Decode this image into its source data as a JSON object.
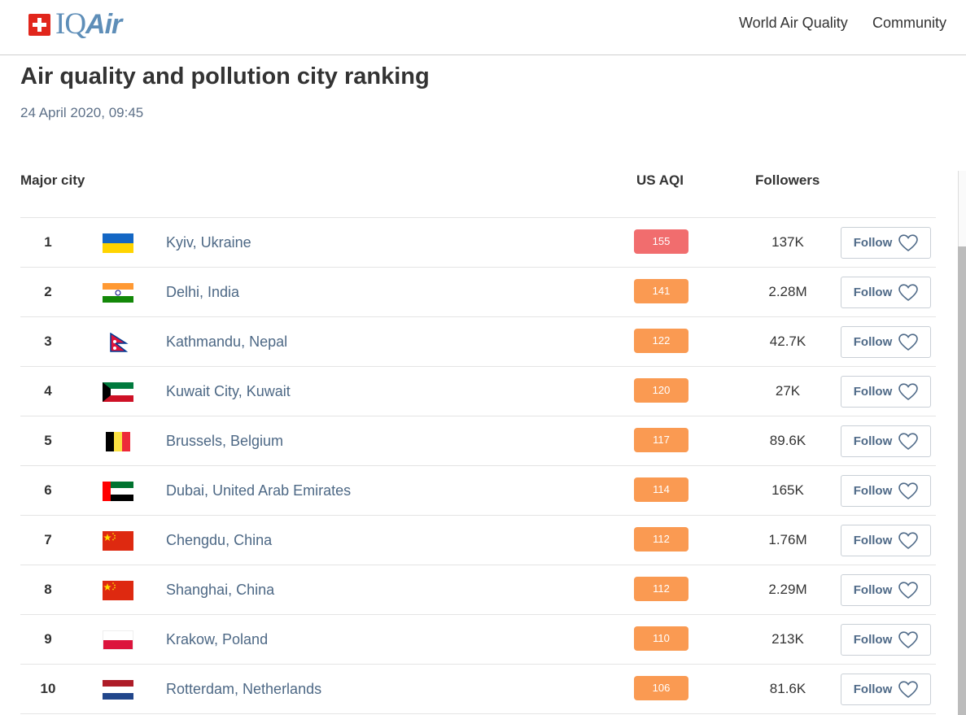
{
  "header": {
    "logo": {
      "iq": "IQ",
      "air": "Air",
      "icon": "swiss-cross-icon"
    },
    "nav": [
      "World Air Quality",
      "Community"
    ]
  },
  "page": {
    "title": "Air quality and pollution city ranking",
    "date": "24 April 2020, 09:45"
  },
  "table": {
    "columns": {
      "city": "Major city",
      "aqi": "US AQI",
      "followers": "Followers"
    },
    "follow_label": "Follow",
    "rows": [
      {
        "rank": "1",
        "flag": "ukraine-flag",
        "city": "Kyiv, Ukraine",
        "aqi": "155",
        "aqi_color": "#f16d6e",
        "followers": "137K"
      },
      {
        "rank": "2",
        "flag": "india-flag",
        "city": "Delhi, India",
        "aqi": "141",
        "aqi_color": "#fa9a52",
        "followers": "2.28M"
      },
      {
        "rank": "3",
        "flag": "nepal-flag",
        "city": "Kathmandu, Nepal",
        "aqi": "122",
        "aqi_color": "#fa9a52",
        "followers": "42.7K"
      },
      {
        "rank": "4",
        "flag": "kuwait-flag",
        "city": "Kuwait City, Kuwait",
        "aqi": "120",
        "aqi_color": "#fa9a52",
        "followers": "27K"
      },
      {
        "rank": "5",
        "flag": "belgium-flag",
        "city": "Brussels, Belgium",
        "aqi": "117",
        "aqi_color": "#fa9a52",
        "followers": "89.6K"
      },
      {
        "rank": "6",
        "flag": "uae-flag",
        "city": "Dubai, United Arab Emirates",
        "aqi": "114",
        "aqi_color": "#fa9a52",
        "followers": "165K"
      },
      {
        "rank": "7",
        "flag": "china-flag",
        "city": "Chengdu, China",
        "aqi": "112",
        "aqi_color": "#fa9a52",
        "followers": "1.76M"
      },
      {
        "rank": "8",
        "flag": "china-flag",
        "city": "Shanghai, China",
        "aqi": "112",
        "aqi_color": "#fa9a52",
        "followers": "2.29M"
      },
      {
        "rank": "9",
        "flag": "poland-flag",
        "city": "Krakow, Poland",
        "aqi": "110",
        "aqi_color": "#fa9a52",
        "followers": "213K"
      },
      {
        "rank": "10",
        "flag": "netherlands-flag",
        "city": "Rotterdam, Netherlands",
        "aqi": "106",
        "aqi_color": "#fa9a52",
        "followers": "81.6K"
      }
    ]
  },
  "colors": {
    "brand_red": "#e1261c",
    "brand_blue": "#5e8eb8",
    "link": "#4d6885"
  }
}
